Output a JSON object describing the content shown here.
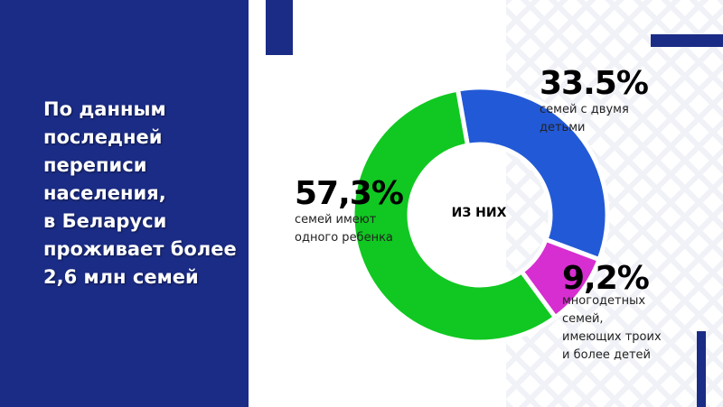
{
  "headline": "По данным\nпоследней\nпереписи\nнаселения,\nв Беларуси\nпроживает более\n2,6 млн семей",
  "chart_data": {
    "type": "pie",
    "donut": true,
    "center_label": "ИЗ НИХ",
    "slices": [
      {
        "label": "33.5%",
        "description": "семей с двумя\nдетьми",
        "value": 33.5,
        "color": "#2259d6"
      },
      {
        "label": "9,2%",
        "description": "многодетных\nсемей,\nимеющих троих\nи более детей",
        "value": 9.2,
        "color": "#d62ed0"
      },
      {
        "label": "57,3%",
        "description": "семей имеют\nодного ребенка",
        "value": 57.3,
        "color": "#10c821"
      }
    ]
  },
  "colors": {
    "panel": "#1b2c86"
  }
}
